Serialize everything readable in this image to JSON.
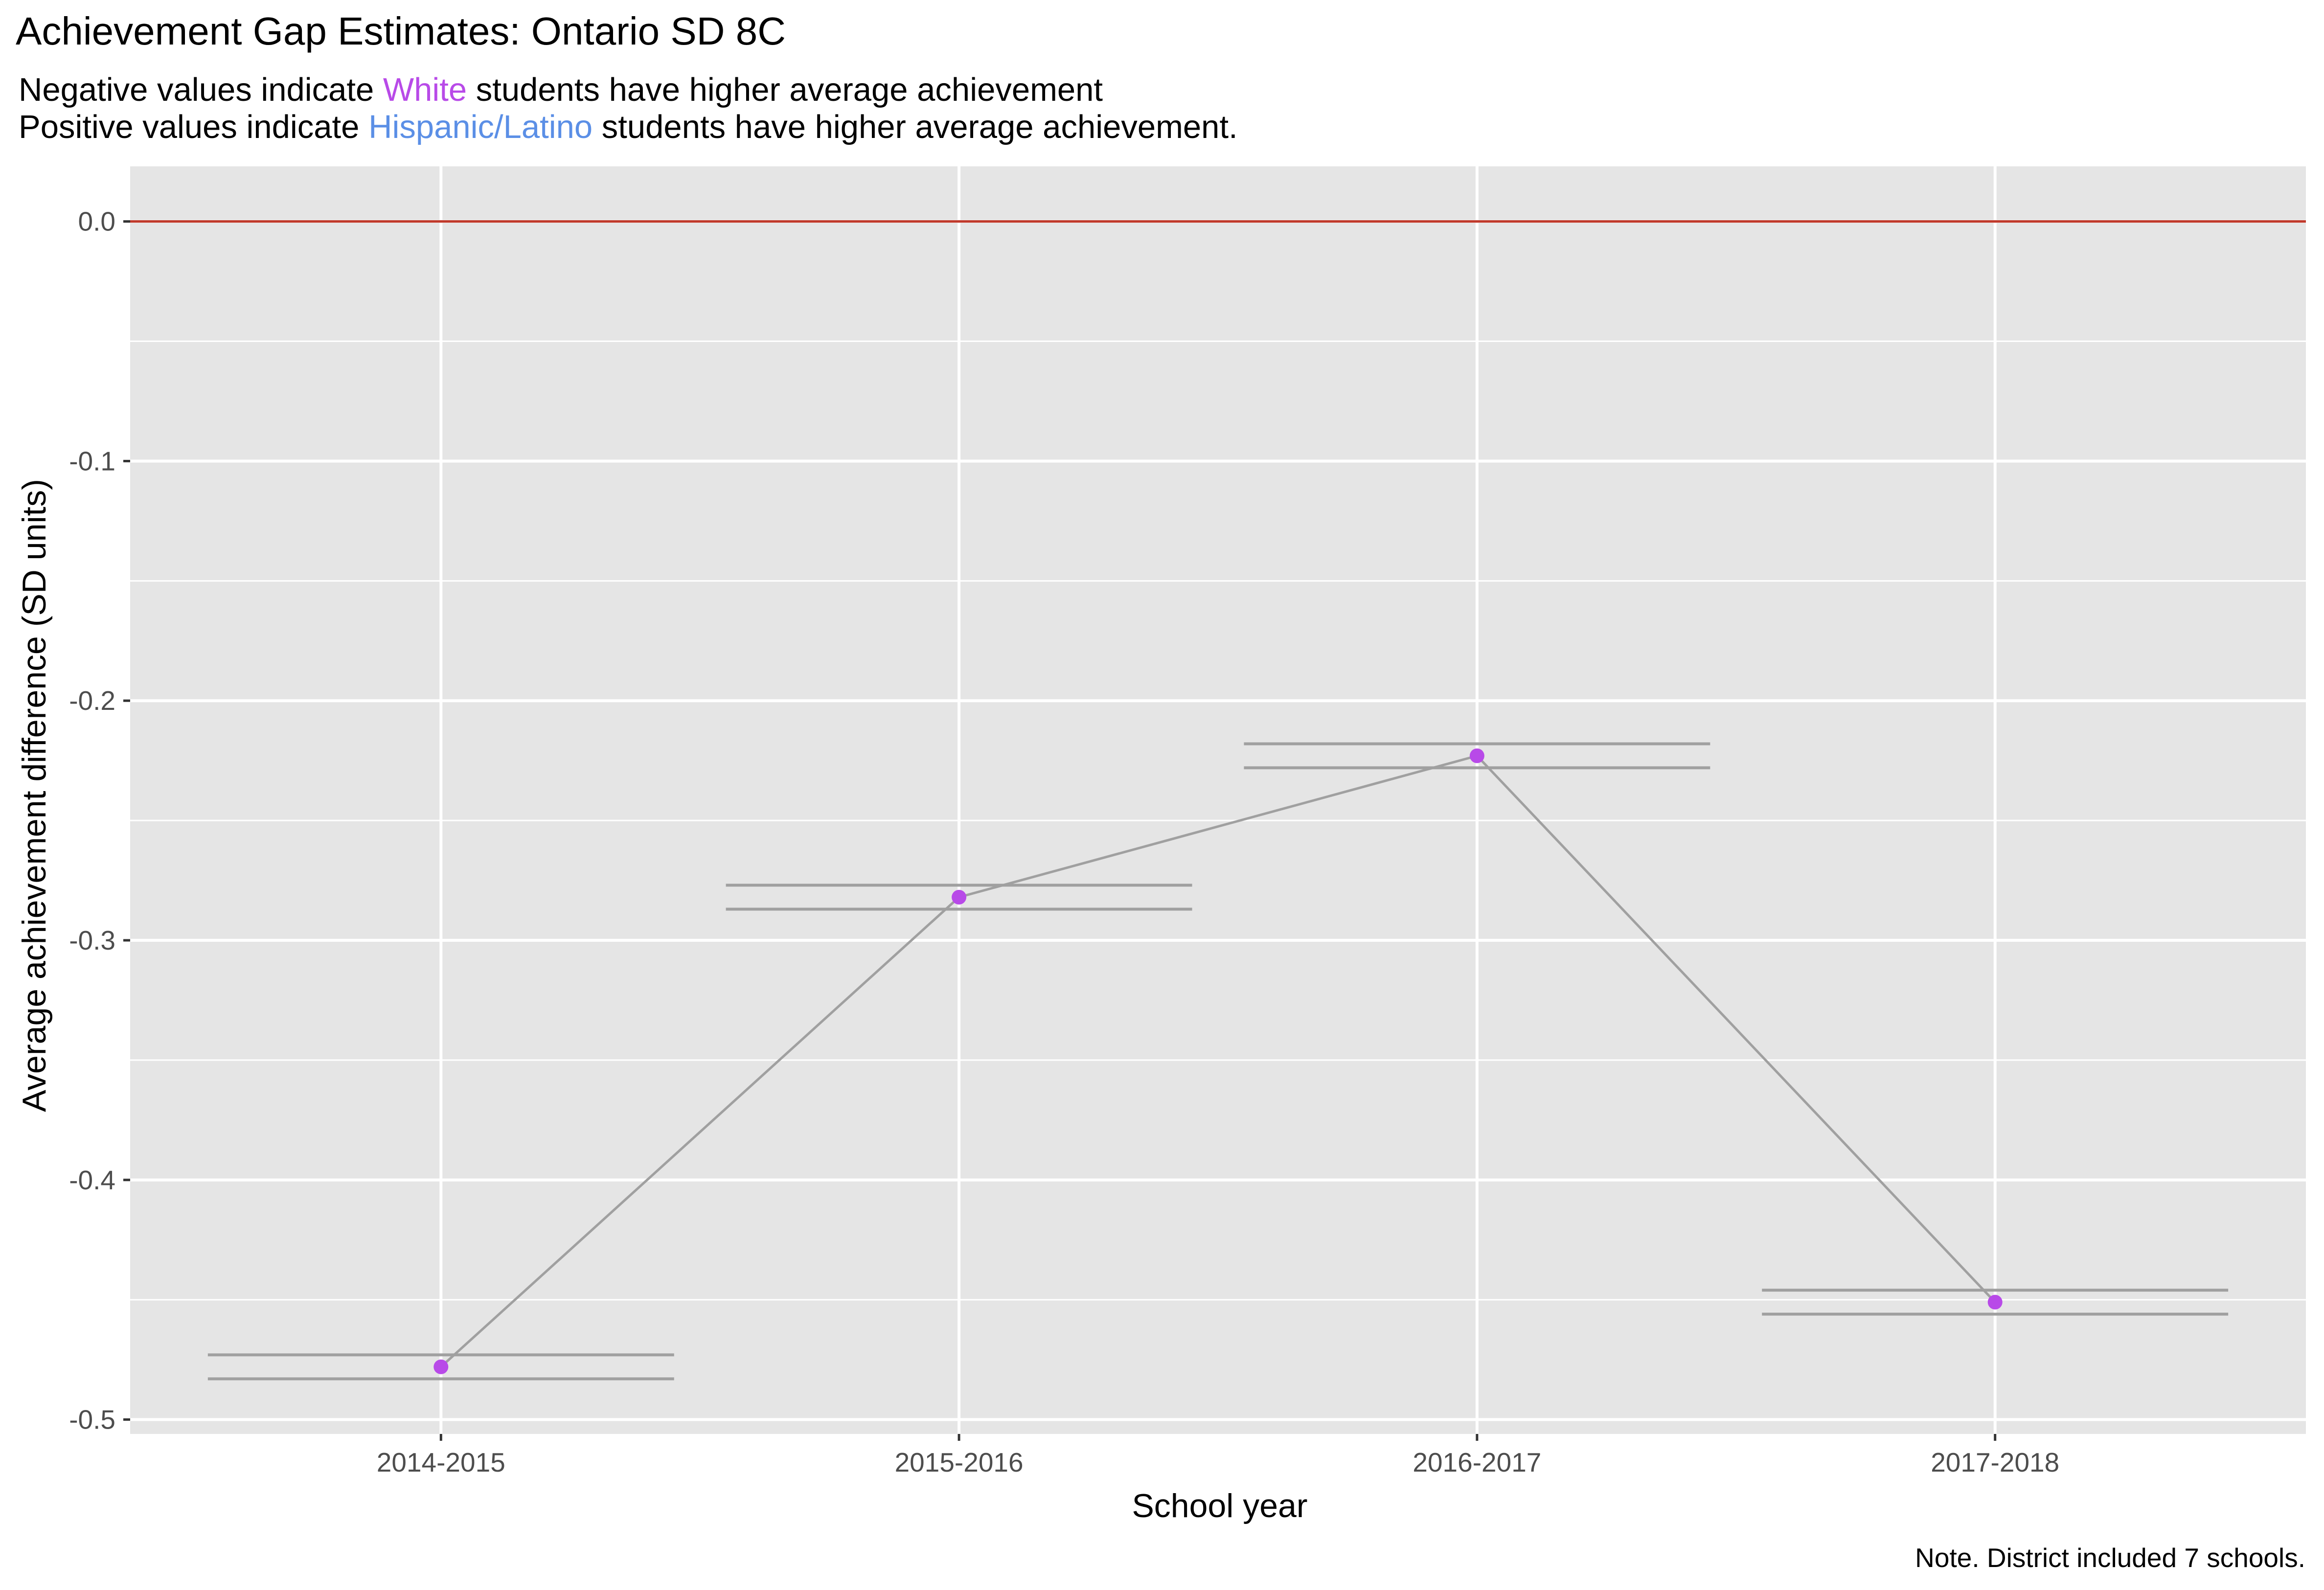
{
  "title": "Achievement Gap Estimates: Ontario SD 8C",
  "subtitle": {
    "line1_pre": "Negative values indicate ",
    "line1_highlight": "White",
    "line1_post": " students have higher average achievement",
    "line2_pre": "Positive values indicate ",
    "line2_highlight": "Hispanic/Latino",
    "line2_post": " students have higher average achievement."
  },
  "note": "Note. District included 7 schools.",
  "colors": {
    "panel": "#e5e5e5",
    "grid": "#ffffff",
    "zero_line": "#c0392b",
    "point": "#b84ae8",
    "connector": "#a0a0a0",
    "white_group": "#b84ae8",
    "hispanic_group": "#5b8fe6"
  },
  "chart_data": {
    "type": "line",
    "title": "Achievement Gap Estimates: Ontario SD 8C",
    "xlabel": "School year",
    "ylabel": "Average achievement difference (SD units)",
    "categories": [
      "2014-2015",
      "2015-2016",
      "2016-2017",
      "2017-2018"
    ],
    "values": [
      -0.478,
      -0.282,
      -0.223,
      -0.451
    ],
    "interval_upper": [
      -0.473,
      -0.277,
      -0.218,
      -0.446
    ],
    "interval_lower": [
      -0.483,
      -0.287,
      -0.228,
      -0.456
    ],
    "ylim": [
      -0.506,
      0.023
    ],
    "yticks": [
      0.0,
      -0.1,
      -0.2,
      -0.3,
      -0.4,
      -0.5
    ],
    "ytick_labels": [
      "0.0",
      "-0.1",
      "-0.2",
      "-0.3",
      "-0.4",
      "-0.5"
    ],
    "reference_line": 0.0,
    "grid": true
  }
}
